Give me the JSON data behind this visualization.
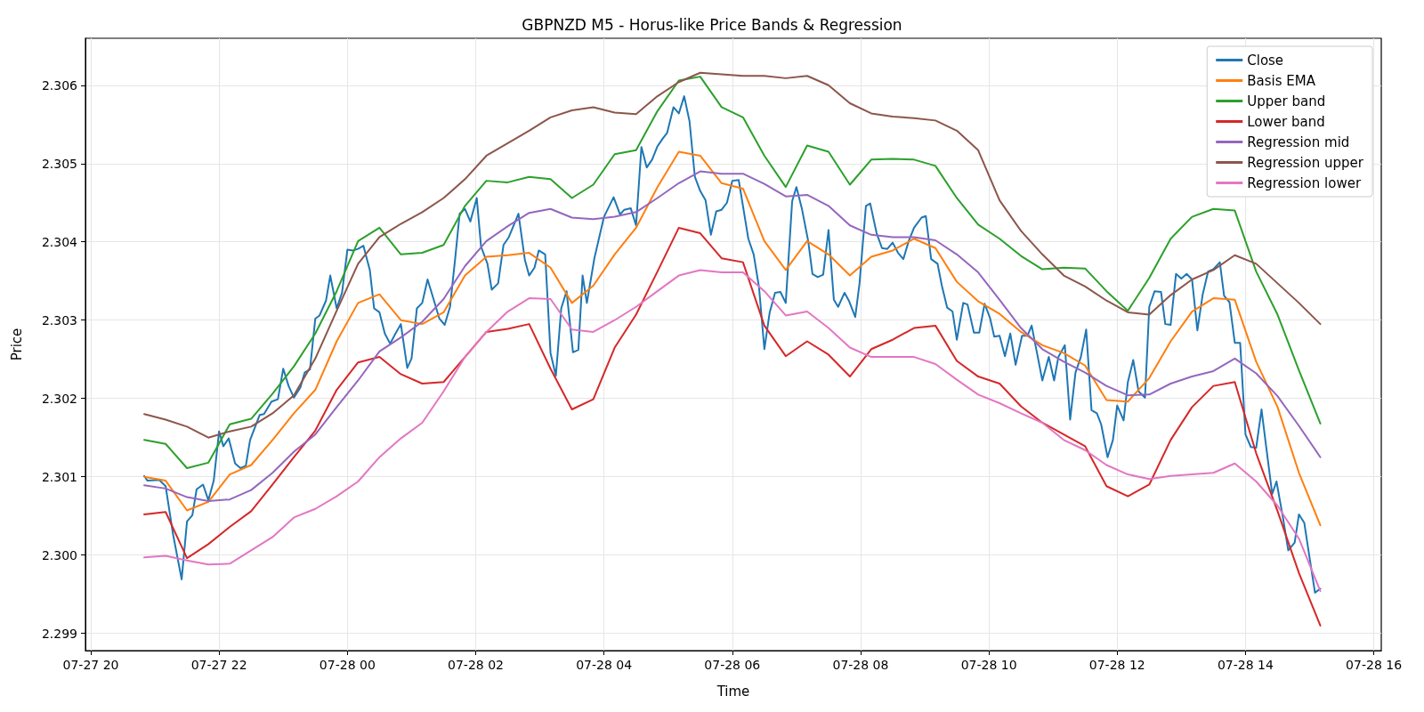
{
  "chart_data": {
    "type": "line",
    "title": "GBPNZD M5 - Horus-like Price Bands & Regression",
    "xlabel": "Time",
    "ylabel": "Price",
    "x": [
      "--07-27T20:50",
      "--07-27T21:10",
      "--07-27T21:30",
      "--07-27T21:50",
      "--07-27T22:10",
      "--07-27T22:30",
      "--07-27T22:50",
      "--07-27T23:10",
      "--07-27T23:30",
      "--07-27T23:50",
      "--07-28T00:10",
      "--07-28T00:30",
      "--07-28T00:50",
      "--07-28T01:10",
      "--07-28T01:30",
      "--07-28T01:50",
      "--07-28T02:10",
      "--07-28T02:30",
      "--07-28T02:50",
      "--07-28T03:10",
      "--07-28T03:30",
      "--07-28T03:50",
      "--07-28T04:10",
      "--07-28T04:30",
      "--07-28T04:50",
      "--07-28T05:10",
      "--07-28T05:30",
      "--07-28T05:50",
      "--07-28T06:10",
      "--07-28T06:30",
      "--07-28T06:50",
      "--07-28T07:10",
      "--07-28T07:30",
      "--07-28T07:50",
      "--07-28T08:10",
      "--07-28T08:30",
      "--07-28T08:50",
      "--07-28T09:10",
      "--07-28T09:30",
      "--07-28T09:50",
      "--07-28T10:10",
      "--07-28T10:30",
      "--07-28T10:50",
      "--07-28T11:10",
      "--07-28T11:30",
      "--07-28T11:50",
      "--07-28T12:10",
      "--07-28T12:30",
      "--07-28T12:50",
      "--07-28T13:10",
      "--07-28T13:30",
      "--07-28T13:50",
      "--07-28T14:10",
      "--07-28T14:30",
      "--07-28T14:50",
      "--07-28T15:10"
    ],
    "xlim": [
      "--07-27T19:55",
      "--07-28T16:07"
    ],
    "xticks": [
      {
        "value": "--07-27T20:00",
        "label": "07-27 20"
      },
      {
        "value": "--07-27T22:00",
        "label": "07-27 22"
      },
      {
        "value": "--07-28T00:00",
        "label": "07-28 00"
      },
      {
        "value": "--07-28T02:00",
        "label": "07-28 02"
      },
      {
        "value": "--07-28T04:00",
        "label": "07-28 04"
      },
      {
        "value": "--07-28T06:00",
        "label": "07-28 06"
      },
      {
        "value": "--07-28T08:00",
        "label": "07-28 08"
      },
      {
        "value": "--07-28T10:00",
        "label": "07-28 10"
      },
      {
        "value": "--07-28T12:00",
        "label": "07-28 12"
      },
      {
        "value": "--07-28T14:00",
        "label": "07-28 14"
      },
      {
        "value": "--07-28T16:00",
        "label": "07-28 16"
      }
    ],
    "ylim": [
      2.29878,
      2.3066
    ],
    "yticks": [
      2.299,
      {
        "value": 2.3,
        "label": "2.300"
      },
      2.301,
      2.302,
      2.303,
      2.304,
      2.305,
      2.306
    ],
    "grid": true,
    "legend": "top right",
    "line_style": "solid",
    "marker": "none",
    "series": [
      {
        "name": "Close",
        "color": "#1f77b4",
        "x": [
          "--07-27T20:50",
          "--07-27T20:53",
          "--07-27T21:04",
          "--07-27T21:10",
          "--07-27T21:17",
          "--07-27T21:25",
          "--07-27T21:30",
          "--07-27T21:35",
          "--07-27T21:39",
          "--07-27T21:45",
          "--07-27T21:50",
          "--07-27T21:55",
          "--07-27T22:00",
          "--07-27T22:04",
          "--07-27T22:09",
          "--07-27T22:15",
          "--07-27T22:20",
          "--07-27T22:25",
          "--07-27T22:29",
          "--07-27T22:38",
          "--07-27T22:42",
          "--07-27T22:49",
          "--07-27T22:55",
          "--07-27T23:00",
          "--07-27T23:05",
          "--07-27T23:10",
          "--07-27T23:16",
          "--07-27T23:20",
          "--07-27T23:25",
          "--07-27T23:30",
          "--07-27T23:34",
          "--07-27T23:40",
          "--07-27T23:44",
          "--07-27T23:50",
          "--07-27T23:55",
          "--07-28T00:00",
          "--07-28T00:05",
          "--07-28T00:10",
          "--07-28T00:15",
          "--07-28T00:21",
          "--07-28T00:25",
          "--07-28T00:30",
          "--07-28T00:35",
          "--07-28T00:40",
          "--07-28T00:45",
          "--07-28T00:50",
          "--07-28T00:56",
          "--07-28T01:00",
          "--07-28T01:05",
          "--07-28T01:10",
          "--07-28T01:15",
          "--07-28T01:21",
          "--07-28T01:26",
          "--07-28T01:31",
          "--07-28T01:36",
          "--07-28T01:41",
          "--07-28T01:45",
          "--07-28T01:50",
          "--07-28T01:55",
          "--07-28T02:01",
          "--07-28T02:05",
          "--07-28T02:11",
          "--07-28T02:15",
          "--07-28T02:21",
          "--07-28T02:26",
          "--07-28T02:31",
          "--07-28T02:40",
          "--07-28T02:46",
          "--07-28T02:50",
          "--07-28T02:55",
          "--07-28T02:59",
          "--07-28T03:05",
          "--07-28T03:10",
          "--07-28T03:15",
          "--07-28T03:20",
          "--07-28T03:25",
          "--07-28T03:31",
          "--07-28T03:36",
          "--07-28T03:40",
          "--07-28T03:44",
          "--07-28T03:51",
          "--07-28T04:00",
          "--07-28T04:09",
          "--07-28T04:15",
          "--07-28T04:19",
          "--07-28T04:25",
          "--07-28T04:30",
          "--07-28T04:35",
          "--07-28T04:40",
          "--07-28T04:45",
          "--07-28T04:50",
          "--07-28T04:55",
          "--07-28T04:59",
          "--07-28T05:05",
          "--07-28T05:10",
          "--07-28T05:15",
          "--07-28T05:20",
          "--07-28T05:25",
          "--07-28T05:30",
          "--07-28T05:35",
          "--07-28T05:40",
          "--07-28T05:45",
          "--07-28T05:50",
          "--07-28T05:55",
          "--07-28T06:00",
          "--07-28T06:06",
          "--07-28T06:15",
          "--07-28T06:20",
          "--07-28T06:25",
          "--07-28T06:30",
          "--07-28T06:35",
          "--07-28T06:40",
          "--07-28T06:45",
          "--07-28T06:50",
          "--07-28T06:56",
          "--07-28T07:00",
          "--07-28T07:05",
          "--07-28T07:11",
          "--07-28T07:15",
          "--07-28T07:20",
          "--07-28T07:25",
          "--07-28T07:30",
          "--07-28T07:35",
          "--07-28T07:39",
          "--07-28T07:45",
          "--07-28T07:49",
          "--07-28T07:55",
          "--07-28T07:59",
          "--07-28T08:05",
          "--07-28T08:09",
          "--07-28T08:15",
          "--07-28T08:20",
          "--07-28T08:25",
          "--07-28T08:30",
          "--07-28T08:35",
          "--07-28T08:40",
          "--07-28T08:45",
          "--07-28T08:50",
          "--07-28T08:57",
          "--07-28T09:01",
          "--07-28T09:06",
          "--07-28T09:12",
          "--07-28T09:16",
          "--07-28T09:21",
          "--07-28T09:26",
          "--07-28T09:30",
          "--07-28T09:36",
          "--07-28T09:40",
          "--07-28T09:46",
          "--07-28T09:51",
          "--07-28T09:56",
          "--07-28T10:01",
          "--07-28T10:05",
          "--07-28T10:10",
          "--07-28T10:15",
          "--07-28T10:20",
          "--07-28T10:25",
          "--07-28T10:31",
          "--07-28T10:36",
          "--07-28T10:40",
          "--07-28T10:45",
          "--07-28T10:50",
          "--07-28T10:56",
          "--07-28T11:01",
          "--07-28T11:05",
          "--07-28T11:11",
          "--07-28T11:16",
          "--07-28T11:21",
          "--07-28T11:26",
          "--07-28T11:31",
          "--07-28T11:36",
          "--07-28T11:41",
          "--07-28T11:45",
          "--07-28T11:51",
          "--07-28T11:56",
          "--07-28T12:00",
          "--07-28T12:06",
          "--07-28T12:10",
          "--07-28T12:15",
          "--07-28T12:20",
          "--07-28T12:26",
          "--07-28T12:30",
          "--07-28T12:35",
          "--07-28T12:41",
          "--07-28T12:45",
          "--07-28T12:50",
          "--07-28T12:55",
          "--07-28T13:00",
          "--07-28T13:05",
          "--07-28T13:10",
          "--07-28T13:15",
          "--07-28T13:20",
          "--07-28T13:25",
          "--07-28T13:30",
          "--07-28T13:36",
          "--07-28T13:40",
          "--07-28T13:45",
          "--07-28T13:50",
          "--07-28T13:55",
          "--07-28T14:00",
          "--07-28T14:05",
          "--07-28T14:10",
          "--07-28T14:15",
          "--07-28T14:19",
          "--07-28T14:25",
          "--07-28T14:29",
          "--07-28T14:35",
          "--07-28T14:40",
          "--07-28T14:46",
          "--07-28T14:50",
          "--07-28T14:55",
          "--07-28T15:00",
          "--07-28T15:05",
          "--07-28T15:10"
        ],
        "values": [
          2.30101,
          2.30095,
          2.30096,
          2.30088,
          2.30026,
          2.29969,
          2.30043,
          2.30051,
          2.30084,
          2.3009,
          2.3007,
          2.30095,
          2.30158,
          2.30139,
          2.30149,
          2.30117,
          2.30111,
          2.30114,
          2.30147,
          2.30179,
          2.3018,
          2.30196,
          2.30199,
          2.30238,
          2.30216,
          2.30201,
          2.30214,
          2.30233,
          2.30237,
          2.30302,
          2.30306,
          2.30325,
          2.30357,
          2.30315,
          2.30335,
          2.3039,
          2.30389,
          2.30391,
          2.30395,
          2.30364,
          2.30315,
          2.3031,
          2.30283,
          2.3027,
          2.30283,
          2.30295,
          2.30239,
          2.30251,
          2.30315,
          2.30322,
          2.30352,
          2.30325,
          2.30302,
          2.30294,
          2.30317,
          2.30381,
          2.30436,
          2.30442,
          2.30426,
          2.30456,
          2.30394,
          2.30372,
          2.30339,
          2.30347,
          2.30396,
          2.30406,
          2.30436,
          2.30377,
          2.30357,
          2.30367,
          2.30389,
          2.30384,
          2.30258,
          2.30229,
          2.30315,
          2.30337,
          2.30259,
          2.30262,
          2.30357,
          2.30322,
          2.30379,
          2.30432,
          2.30457,
          2.30435,
          2.30441,
          2.30443,
          2.30421,
          2.30521,
          2.30495,
          2.30505,
          2.30522,
          2.30532,
          2.30539,
          2.30572,
          2.30564,
          2.30586,
          2.30554,
          2.30483,
          2.30465,
          2.30453,
          2.30409,
          2.30439,
          2.30441,
          2.3045,
          2.30478,
          2.30479,
          2.30404,
          2.30384,
          2.30342,
          2.30263,
          2.3031,
          2.30335,
          2.30336,
          2.30322,
          2.30452,
          2.3047,
          2.30443,
          2.30401,
          2.30359,
          2.30355,
          2.30358,
          2.30415,
          2.30326,
          2.30317,
          2.30335,
          2.30325,
          2.30304,
          2.30347,
          2.30446,
          2.30449,
          2.30411,
          2.30392,
          2.30391,
          2.30399,
          2.30386,
          2.30378,
          2.30401,
          2.30418,
          2.30431,
          2.30433,
          2.30378,
          2.30372,
          2.30344,
          2.30316,
          2.30311,
          2.30275,
          2.30322,
          2.3032,
          2.30284,
          2.30284,
          2.30321,
          2.30303,
          2.30279,
          2.3028,
          2.30254,
          2.30283,
          2.30243,
          2.3028,
          2.3028,
          2.30293,
          2.30258,
          2.30223,
          2.30253,
          2.30223,
          2.30253,
          2.30268,
          2.30173,
          2.30233,
          2.30253,
          2.30288,
          2.30185,
          2.30181,
          2.30167,
          2.30125,
          2.30147,
          2.30191,
          2.30172,
          2.30221,
          2.30249,
          2.30209,
          2.30201,
          2.30317,
          2.30337,
          2.30336,
          2.30295,
          2.30294,
          2.30359,
          2.30353,
          2.30359,
          2.30352,
          2.30287,
          2.30333,
          2.30362,
          2.30365,
          2.30374,
          2.30331,
          2.30323,
          2.30271,
          2.30271,
          2.30154,
          2.30138,
          2.30137,
          2.30186,
          2.30142,
          2.30078,
          2.30094,
          2.30048,
          2.30006,
          2.30016,
          2.30052,
          2.30041,
          2.29996,
          2.29952,
          2.29957
        ]
      },
      {
        "name": "Basis EMA",
        "color": "#ff7f0e",
        "values": [
          2.301,
          2.30095,
          2.30057,
          2.30068,
          2.30103,
          2.30115,
          2.30147,
          2.30181,
          2.30211,
          2.30273,
          2.30322,
          2.30333,
          2.303,
          2.30295,
          2.3031,
          2.30357,
          2.30381,
          2.30383,
          2.30386,
          2.30367,
          2.30322,
          2.30344,
          2.30384,
          2.30418,
          2.3047,
          2.30515,
          2.3051,
          2.30475,
          2.30468,
          2.30401,
          2.30364,
          2.30401,
          2.30384,
          2.30357,
          2.30381,
          2.30389,
          2.30404,
          2.30392,
          2.30349,
          2.30324,
          2.30308,
          2.30285,
          2.30268,
          2.30258,
          2.30242,
          2.30198,
          2.30196,
          2.30226,
          2.30273,
          2.30311,
          2.30328,
          2.30326,
          2.30247,
          2.30189,
          2.30105,
          2.30038
        ]
      },
      {
        "name": "Upper band",
        "color": "#2ca02c",
        "values": [
          2.30147,
          2.30142,
          2.30111,
          2.30118,
          2.30167,
          2.30174,
          2.30206,
          2.30241,
          2.30283,
          2.30337,
          2.30401,
          2.30418,
          2.30384,
          2.30386,
          2.30396,
          2.30446,
          2.30478,
          2.30476,
          2.30483,
          2.3048,
          2.30456,
          2.30473,
          2.30512,
          2.30517,
          2.30567,
          2.30606,
          2.30611,
          2.30572,
          2.30559,
          2.3051,
          2.3047,
          2.30523,
          2.30515,
          2.30473,
          2.30505,
          2.30506,
          2.30505,
          2.30497,
          2.30456,
          2.30422,
          2.30404,
          2.30382,
          2.30365,
          2.30367,
          2.30366,
          2.30337,
          2.30312,
          2.30354,
          2.30404,
          2.30432,
          2.30442,
          2.3044,
          2.30362,
          2.30307,
          2.30236,
          2.30168
        ]
      },
      {
        "name": "Lower band",
        "color": "#d62728",
        "values": [
          2.30052,
          2.30055,
          2.29996,
          2.30014,
          2.30036,
          2.30056,
          2.3009,
          2.30125,
          2.30159,
          2.30211,
          2.30246,
          2.30253,
          2.30231,
          2.30219,
          2.30221,
          2.30253,
          2.30285,
          2.30289,
          2.30295,
          2.30238,
          2.30186,
          2.30199,
          2.30265,
          2.30307,
          2.30362,
          2.30418,
          2.30411,
          2.30379,
          2.30374,
          2.30293,
          2.30254,
          2.30273,
          2.30256,
          2.30228,
          2.30263,
          2.30275,
          2.3029,
          2.30293,
          2.30248,
          2.30228,
          2.30219,
          2.3019,
          2.30169,
          2.30154,
          2.30139,
          2.30088,
          2.30075,
          2.3009,
          2.30147,
          2.30189,
          2.30216,
          2.30221,
          2.3013,
          2.30056,
          2.29977,
          2.2991
        ]
      },
      {
        "name": "Regression mid",
        "color": "#9467bd",
        "values": [
          2.30089,
          2.30085,
          2.30074,
          2.30069,
          2.30071,
          2.30083,
          2.30105,
          2.30132,
          2.30154,
          2.30189,
          2.30223,
          2.3026,
          2.30278,
          2.30298,
          2.30327,
          2.30369,
          2.30401,
          2.3042,
          2.30437,
          2.30442,
          2.30431,
          2.30429,
          2.30432,
          2.30438,
          2.30456,
          2.30475,
          2.3049,
          2.30487,
          2.30487,
          2.30474,
          2.30458,
          2.3046,
          2.30446,
          2.30421,
          2.30409,
          2.30406,
          2.30406,
          2.30402,
          2.30384,
          2.30361,
          2.30326,
          2.3029,
          2.30263,
          2.30247,
          2.30233,
          2.30216,
          2.30204,
          2.30205,
          2.30219,
          2.30228,
          2.30235,
          2.30251,
          2.30232,
          2.30203,
          2.30165,
          2.30125
        ]
      },
      {
        "name": "Regression upper",
        "color": "#8c564b",
        "values": [
          2.3018,
          2.30173,
          2.30164,
          2.3015,
          2.30158,
          2.30164,
          2.30181,
          2.30204,
          2.30251,
          2.30312,
          2.30372,
          2.30406,
          2.30423,
          2.30438,
          2.30456,
          2.3048,
          2.3051,
          2.30526,
          2.30542,
          2.30559,
          2.30568,
          2.30572,
          2.30565,
          2.30563,
          2.30586,
          2.30604,
          2.30616,
          2.30614,
          2.30612,
          2.30612,
          2.30609,
          2.30612,
          2.306,
          2.30577,
          2.30564,
          2.3056,
          2.30558,
          2.30555,
          2.30542,
          2.30517,
          2.30453,
          2.30414,
          2.30384,
          2.30357,
          2.30343,
          2.30325,
          2.3031,
          2.30307,
          2.30332,
          2.30352,
          2.30364,
          2.30383,
          2.30372,
          2.30347,
          2.30322,
          2.30295
        ]
      },
      {
        "name": "Regression lower",
        "color": "#e377c2",
        "values": [
          2.29997,
          2.29999,
          2.29993,
          2.29988,
          2.29989,
          2.30006,
          2.30023,
          2.30048,
          2.30059,
          2.30075,
          2.30094,
          2.30125,
          2.30149,
          2.30169,
          2.30209,
          2.30253,
          2.30285,
          2.30311,
          2.30328,
          2.30327,
          2.30288,
          2.30285,
          2.303,
          2.30317,
          2.30337,
          2.30357,
          2.30364,
          2.30361,
          2.30361,
          2.30337,
          2.30306,
          2.30311,
          2.3029,
          2.30265,
          2.30253,
          2.30253,
          2.30253,
          2.30244,
          2.30224,
          2.30205,
          2.30194,
          2.30181,
          2.30169,
          2.30147,
          2.30134,
          2.30115,
          2.30103,
          2.30097,
          2.30101,
          2.30103,
          2.30105,
          2.30117,
          2.30094,
          2.30063,
          2.30021,
          2.29954
        ]
      }
    ]
  }
}
